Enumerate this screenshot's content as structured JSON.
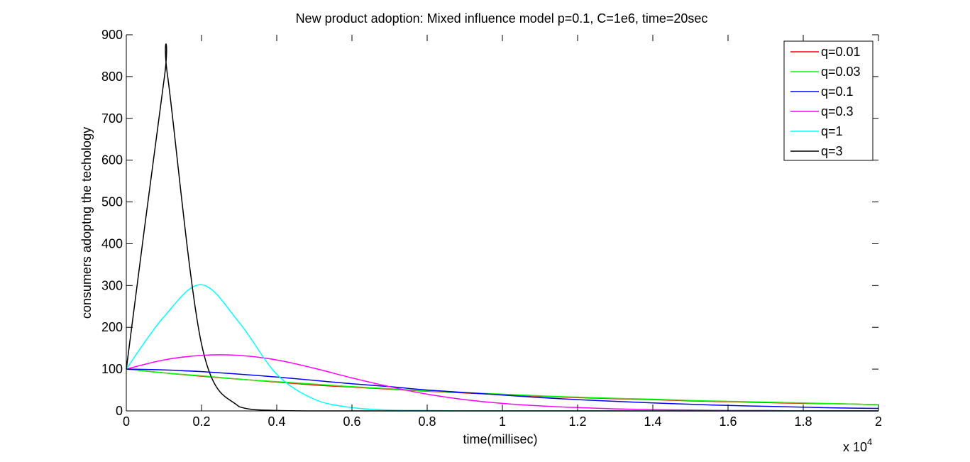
{
  "chart_data": {
    "type": "line",
    "title": "New product adoption: Mixed influence model  p=0.1, C=1e6, time=20sec",
    "xlabel": "time(millisec)",
    "ylabel": "consumers adoptng the techology",
    "x_multiplier_label": "x 10",
    "x_multiplier_exponent": "4",
    "xlim": [
      0,
      20000
    ],
    "ylim": [
      0,
      900
    ],
    "x_ticks": [
      0,
      2000,
      4000,
      6000,
      8000,
      10000,
      12000,
      14000,
      16000,
      18000,
      20000
    ],
    "x_tick_labels": [
      "0",
      "0.2",
      "0.4",
      "0.6",
      "0.8",
      "1",
      "1.2",
      "1.4",
      "1.6",
      "1.8",
      "2"
    ],
    "y_ticks": [
      0,
      100,
      200,
      300,
      400,
      500,
      600,
      700,
      800,
      900
    ],
    "y_tick_labels": [
      "0",
      "100",
      "200",
      "300",
      "400",
      "500",
      "600",
      "700",
      "800",
      "900"
    ],
    "grid": false,
    "legend_position": "top-right",
    "x": [
      0,
      1000,
      2000,
      3000,
      4000,
      5000,
      6000,
      7000,
      8000,
      9000,
      10000,
      11000,
      12000,
      13000,
      14000,
      15000,
      16000,
      17000,
      18000,
      19000,
      20000
    ],
    "series": [
      {
        "name": "q=0.01",
        "color": "#ff0000",
        "values": [
          100,
          91,
          83,
          76,
          69,
          62,
          57,
          52,
          47,
          43,
          39,
          35,
          32,
          29,
          27,
          24,
          22,
          20,
          18,
          17,
          15
        ]
      },
      {
        "name": "q=0.03",
        "color": "#00ff00",
        "values": [
          100,
          91,
          84,
          76,
          70,
          64,
          58,
          53,
          48,
          44,
          40,
          36,
          33,
          30,
          28,
          25,
          23,
          21,
          19,
          17,
          15
        ]
      },
      {
        "name": "q=0.1",
        "color": "#0000ff",
        "values": [
          100,
          98,
          94,
          88,
          81,
          73,
          65,
          58,
          50,
          44,
          38,
          32,
          27,
          23,
          19,
          16,
          13,
          11,
          9,
          7,
          6
        ]
      },
      {
        "name": "q=0.3",
        "color": "#ff00ff",
        "values": [
          100,
          122,
          133,
          133,
          122,
          102,
          79,
          58,
          40,
          27,
          18,
          12,
          8,
          5,
          3,
          2,
          1,
          1,
          0,
          0,
          0
        ]
      },
      {
        "name": "q=1",
        "color": "#00ffff",
        "values": [
          100,
          225,
          302,
          212,
          88,
          28,
          8,
          2,
          1,
          0,
          0,
          0,
          0,
          0,
          0,
          0,
          0,
          0,
          0,
          0,
          0
        ]
      },
      {
        "name": "q=3",
        "color": "#000000",
        "values": [
          100,
          790,
          160,
          10,
          1,
          0,
          0,
          0,
          0,
          0,
          0,
          0,
          0,
          0,
          0,
          0,
          0,
          0,
          0,
          0,
          0
        ],
        "peak": [
          1100,
          800
        ]
      }
    ]
  }
}
